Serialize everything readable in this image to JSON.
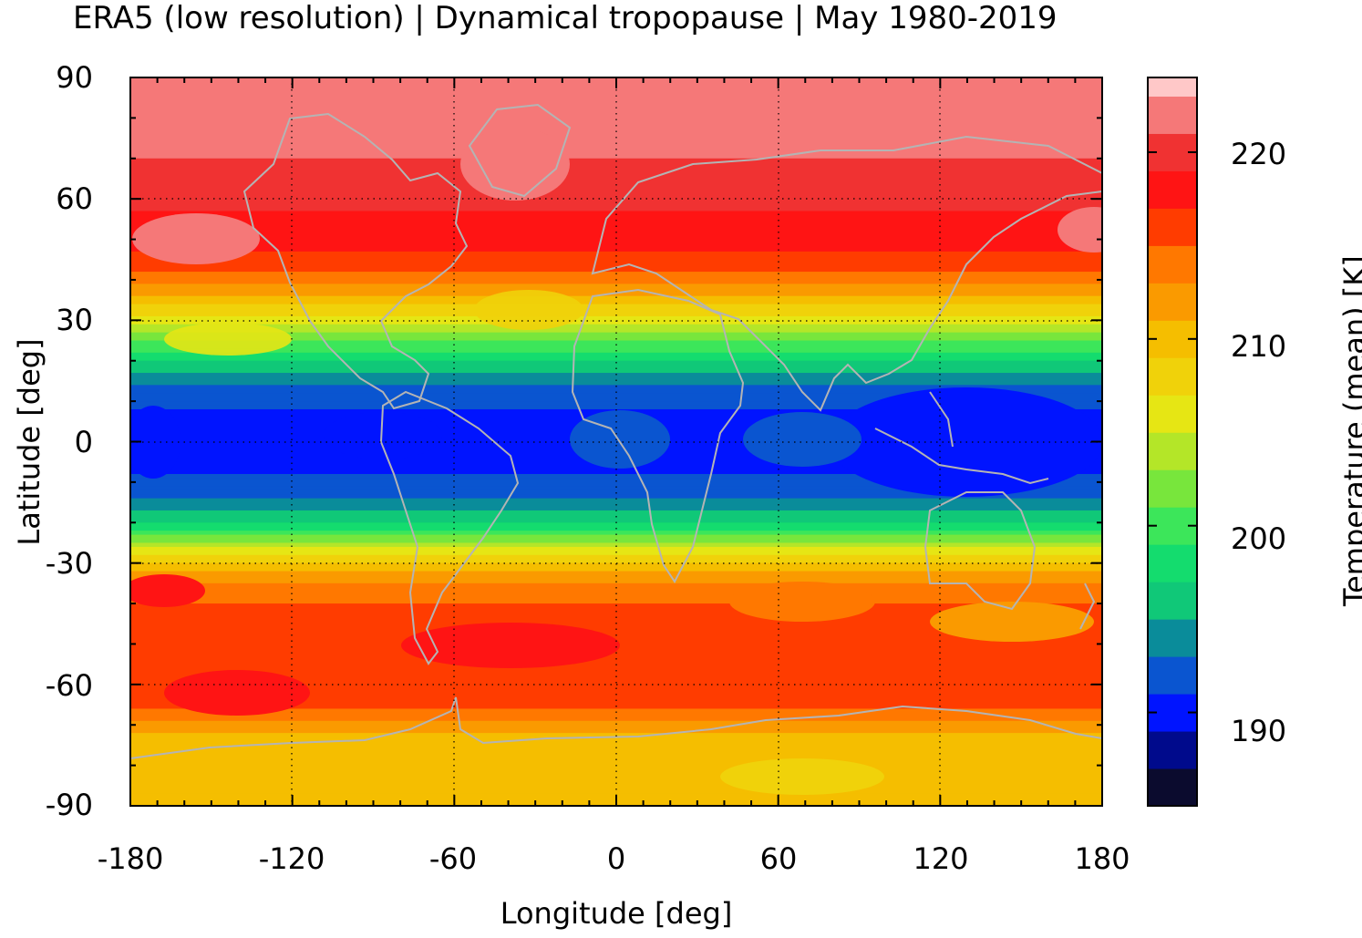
{
  "title": "ERA5 (low resolution) | Dynamical tropopause | May 1980-2019",
  "map": {
    "type": "filled-contour-map",
    "xlabel": "Longitude [deg]",
    "ylabel": "Latitude [deg]",
    "xlim": [
      -180,
      180
    ],
    "ylim": [
      -90,
      90
    ],
    "xticks": [
      "-180",
      "-120",
      "-60",
      "0",
      "60",
      "120",
      "180"
    ],
    "yticks": [
      "90",
      "60",
      "30",
      "0",
      "-30",
      "-60",
      "-90"
    ],
    "grid": true,
    "coastline_color": "#b4b4b4",
    "latitude_profile": [
      {
        "lat": 90,
        "temp": 223
      },
      {
        "lat": 80,
        "temp": 222
      },
      {
        "lat": 70,
        "temp": 221
      },
      {
        "lat": 60,
        "temp": 219.5
      },
      {
        "lat": 50,
        "temp": 218
      },
      {
        "lat": 42,
        "temp": 215
      },
      {
        "lat": 36,
        "temp": 211
      },
      {
        "lat": 30,
        "temp": 206
      },
      {
        "lat": 25,
        "temp": 201
      },
      {
        "lat": 20,
        "temp": 197
      },
      {
        "lat": 14,
        "temp": 193
      },
      {
        "lat": 8,
        "temp": 191
      },
      {
        "lat": 0,
        "temp": 190.5
      },
      {
        "lat": -8,
        "temp": 191
      },
      {
        "lat": -14,
        "temp": 193
      },
      {
        "lat": -20,
        "temp": 197
      },
      {
        "lat": -24,
        "temp": 202
      },
      {
        "lat": -28,
        "temp": 207
      },
      {
        "lat": -33,
        "temp": 212
      },
      {
        "lat": -40,
        "temp": 215
      },
      {
        "lat": -50,
        "temp": 216
      },
      {
        "lat": -60,
        "temp": 217
      },
      {
        "lat": -66,
        "temp": 215
      },
      {
        "lat": -72,
        "temp": 211
      },
      {
        "lat": -80,
        "temp": 209
      },
      {
        "lat": -90,
        "temp": 209
      }
    ]
  },
  "colorbar": {
    "label": "Temperature (mean) [K]",
    "min": 185,
    "max": 224,
    "ticks": [
      "190",
      "200",
      "210",
      "220"
    ],
    "levels": [
      {
        "from": 185,
        "to": 187,
        "color": "#0b0b2e"
      },
      {
        "from": 187,
        "to": 189,
        "color": "#000a8c"
      },
      {
        "from": 189,
        "to": 191,
        "color": "#0014ff"
      },
      {
        "from": 191,
        "to": 193,
        "color": "#0a55d0"
      },
      {
        "from": 193,
        "to": 195,
        "color": "#0a8c9a"
      },
      {
        "from": 195,
        "to": 197,
        "color": "#10c878"
      },
      {
        "from": 197,
        "to": 199,
        "color": "#14dc6e"
      },
      {
        "from": 199,
        "to": 201,
        "color": "#3ce65a"
      },
      {
        "from": 201,
        "to": 203,
        "color": "#78e63c"
      },
      {
        "from": 203,
        "to": 205,
        "color": "#b4e628"
      },
      {
        "from": 205,
        "to": 207,
        "color": "#e6e614"
      },
      {
        "from": 207,
        "to": 209,
        "color": "#f0d20a"
      },
      {
        "from": 209,
        "to": 211,
        "color": "#f5be00"
      },
      {
        "from": 211,
        "to": 213,
        "color": "#fa9a00"
      },
      {
        "from": 213,
        "to": 215,
        "color": "#ff7800"
      },
      {
        "from": 215,
        "to": 217,
        "color": "#ff3c00"
      },
      {
        "from": 217,
        "to": 219,
        "color": "#ff1414"
      },
      {
        "from": 219,
        "to": 221,
        "color": "#f03232"
      },
      {
        "from": 221,
        "to": 223,
        "color": "#f57878"
      },
      {
        "from": 223,
        "to": 225,
        "color": "#ffc8c8"
      }
    ]
  }
}
